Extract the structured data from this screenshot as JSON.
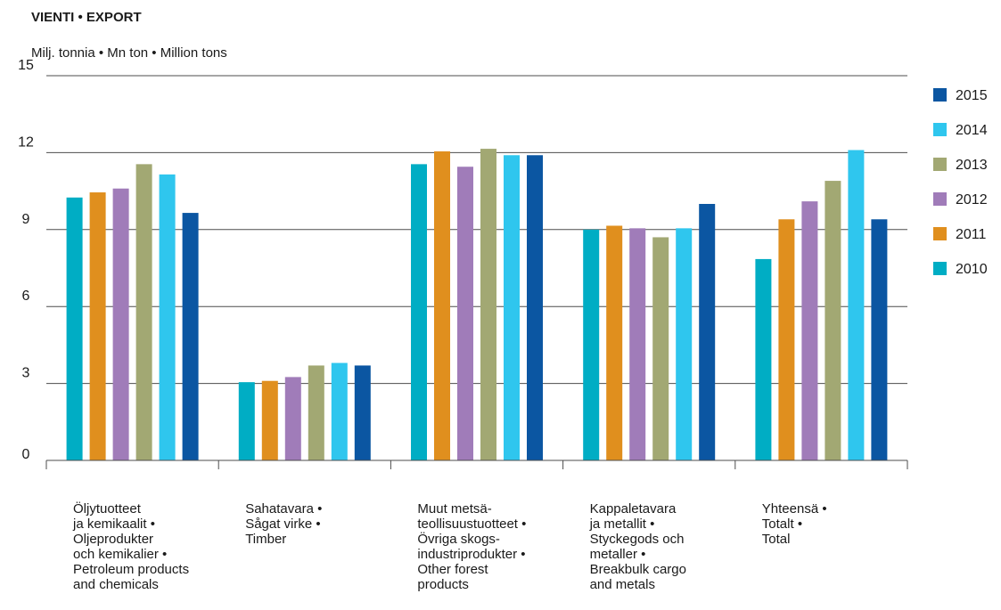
{
  "chart_data": {
    "type": "bar",
    "title": "VIENTI • EXPORT",
    "ylabel": "Milj. tonnia  •  Mn ton  •  Million tons",
    "xlabel": "",
    "ylim": [
      0,
      15
    ],
    "yticks": [
      "0",
      "3",
      "6",
      "9",
      "12",
      "15"
    ],
    "grid": true,
    "legend_position": "right",
    "categories": [
      [
        "Öljytuotteet",
        "ja kemikaalit •",
        "Oljeprodukter",
        "och kemikalier •",
        "Petroleum products",
        "and chemicals"
      ],
      [
        "Sahatavara •",
        "Sågat virke •",
        "Timber"
      ],
      [
        "Muut metsä-",
        "teollisuustuotteet •",
        "Övriga skogs-",
        "industriprodukter •",
        "Other forest",
        "products"
      ],
      [
        "Kappaletavara",
        "ja metallit •",
        "Styckegods och",
        "metaller •",
        "Breakbulk cargo",
        "and metals"
      ],
      [
        "Yhteensä •",
        "Totalt •",
        "Total"
      ]
    ],
    "series": [
      {
        "name": "2010",
        "color": "#00adc4",
        "values": [
          10.25,
          3.05,
          11.55,
          9.0,
          7.85
        ]
      },
      {
        "name": "2011",
        "color": "#e08f1e",
        "values": [
          10.45,
          3.1,
          12.05,
          9.15,
          9.4
        ]
      },
      {
        "name": "2012",
        "color": "#a07cb9",
        "values": [
          10.6,
          3.25,
          11.45,
          9.05,
          10.1
        ]
      },
      {
        "name": "2013",
        "color": "#a2a873",
        "values": [
          11.55,
          3.7,
          12.15,
          8.7,
          10.9
        ]
      },
      {
        "name": "2014",
        "color": "#2fc6ee",
        "values": [
          11.15,
          3.8,
          11.9,
          9.05,
          12.1
        ]
      },
      {
        "name": "2015",
        "color": "#0b56a2",
        "values": [
          9.65,
          3.7,
          11.9,
          10.0,
          9.4
        ]
      }
    ],
    "legend_order": [
      "2015",
      "2014",
      "2013",
      "2012",
      "2011",
      "2010"
    ]
  }
}
